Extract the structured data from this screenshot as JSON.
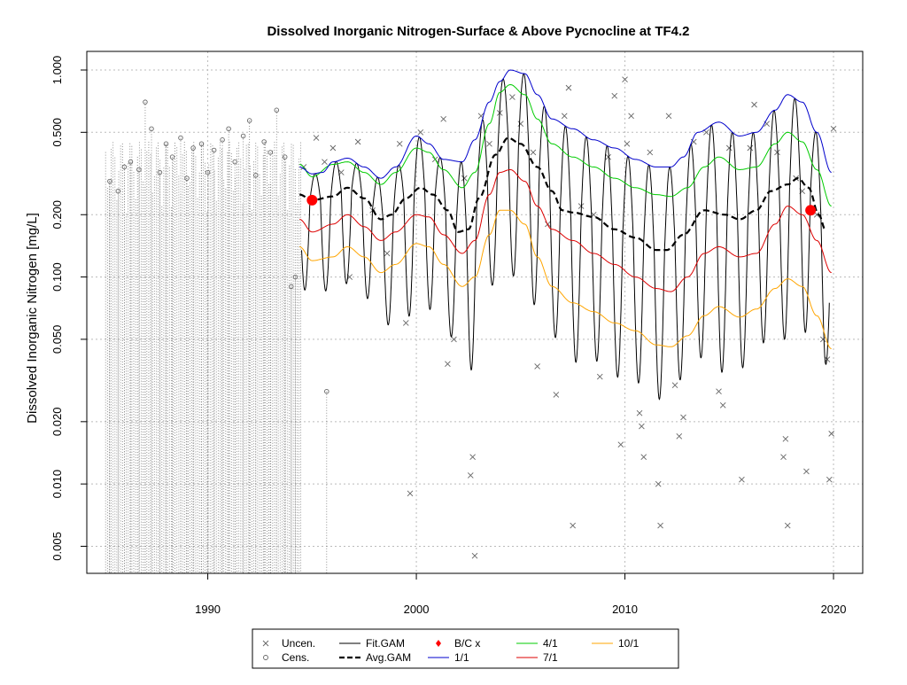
{
  "chart_data": {
    "type": "line",
    "title": "Dissolved Inorganic Nitrogen-Surface & Above Pycnocline at TF4.2",
    "xlabel": "",
    "ylabel": "Dissolved Inorganic Nitrogen [mg/L]",
    "y_scale": "log",
    "xlim": [
      1984.2,
      2021.4
    ],
    "ylim": [
      0.0037,
      1.23
    ],
    "grid": true,
    "x_ticks": [
      1990,
      2000,
      2010,
      2020
    ],
    "x_tick_labels": [
      "1990",
      "2000",
      "2010",
      "2020"
    ],
    "y_ticks": [
      0.005,
      0.01,
      0.02,
      0.05,
      0.1,
      0.2,
      0.5,
      1.0
    ],
    "y_tick_labels": [
      "0.005",
      "0.010",
      "0.020",
      "0.050",
      "0.100",
      "0.200",
      "0.500",
      "1.000"
    ],
    "colors": {
      "fit": "#000000",
      "avg": "#000000",
      "p1_1": "#0000cc",
      "p4_1": "#00cc00",
      "p7_1": "#dd0000",
      "p10_1": "#ffa500",
      "points": "#666666",
      "bc": "#ff0000",
      "grid": "#bbbbbb"
    },
    "series": [
      {
        "name": "Avg.GAM",
        "x": [
          1994.4,
          1995.0,
          1996.0,
          1996.7,
          1997.5,
          1998.3,
          1998.8,
          1999.5,
          2000.2,
          2000.8,
          2001.5,
          2002.0,
          2002.5,
          2003.0,
          2003.8,
          2004.4,
          2005.0,
          2005.8,
          2006.5,
          2007.0,
          2007.5,
          2008.5,
          2009.5,
          2010.5,
          2011.5,
          2012.0,
          2012.8,
          2013.8,
          2014.8,
          2015.5,
          2016.3,
          2017.0,
          2017.8,
          2018.3,
          2018.8,
          2019.3,
          2019.6
        ],
        "y": [
          0.25,
          0.235,
          0.245,
          0.27,
          0.24,
          0.19,
          0.2,
          0.24,
          0.27,
          0.25,
          0.21,
          0.165,
          0.17,
          0.24,
          0.39,
          0.47,
          0.44,
          0.34,
          0.26,
          0.21,
          0.205,
          0.195,
          0.17,
          0.155,
          0.135,
          0.135,
          0.16,
          0.21,
          0.2,
          0.19,
          0.21,
          0.26,
          0.28,
          0.3,
          0.27,
          0.2,
          0.17
        ]
      },
      {
        "name": "1/1",
        "x": [
          1994.4,
          1995.0,
          1995.5,
          1996.0,
          1996.7,
          1997.5,
          1998.3,
          1999.0,
          2000.0,
          2000.6,
          2001.3,
          2002.2,
          2002.8,
          2003.5,
          2004.0,
          2004.5,
          2005.2,
          2005.8,
          2006.5,
          2007.5,
          2008.5,
          2009.5,
          2010.5,
          2011.5,
          2012.2,
          2012.8,
          2013.5,
          2014.5,
          2015.5,
          2016.3,
          2017.2,
          2017.8,
          2018.5,
          2019.2,
          2019.9
        ],
        "y": [
          0.34,
          0.315,
          0.32,
          0.36,
          0.375,
          0.34,
          0.3,
          0.34,
          0.48,
          0.44,
          0.37,
          0.36,
          0.46,
          0.7,
          0.88,
          1.0,
          0.96,
          0.76,
          0.58,
          0.52,
          0.46,
          0.42,
          0.37,
          0.34,
          0.34,
          0.38,
          0.5,
          0.56,
          0.48,
          0.5,
          0.64,
          0.76,
          0.7,
          0.5,
          0.32
        ]
      },
      {
        "name": "4/1",
        "x": [
          1994.4,
          1995.0,
          1996.0,
          1996.7,
          1997.5,
          1998.3,
          1999.0,
          2000.0,
          2000.6,
          2001.3,
          2002.2,
          2002.8,
          2003.5,
          2004.0,
          2004.5,
          2005.2,
          2005.8,
          2006.5,
          2007.5,
          2008.5,
          2009.5,
          2010.5,
          2011.5,
          2012.2,
          2013.0,
          2013.8,
          2014.5,
          2015.5,
          2016.3,
          2017.2,
          2017.8,
          2018.5,
          2019.2,
          2019.9
        ],
        "y": [
          0.35,
          0.305,
          0.35,
          0.36,
          0.32,
          0.28,
          0.32,
          0.42,
          0.4,
          0.33,
          0.27,
          0.32,
          0.55,
          0.78,
          0.85,
          0.76,
          0.58,
          0.44,
          0.38,
          0.34,
          0.3,
          0.27,
          0.25,
          0.245,
          0.27,
          0.34,
          0.38,
          0.33,
          0.34,
          0.44,
          0.5,
          0.45,
          0.33,
          0.22
        ]
      },
      {
        "name": "7/1",
        "x": [
          1994.4,
          1995.0,
          1996.0,
          1996.7,
          1997.5,
          1998.3,
          1999.0,
          2000.0,
          2000.6,
          2001.3,
          2002.2,
          2002.8,
          2003.5,
          2004.0,
          2004.5,
          2005.2,
          2005.8,
          2006.5,
          2007.5,
          2008.5,
          2009.5,
          2010.5,
          2011.5,
          2012.2,
          2013.0,
          2013.8,
          2014.5,
          2015.5,
          2016.3,
          2017.2,
          2017.8,
          2018.5,
          2019.2,
          2019.9
        ],
        "y": [
          0.19,
          0.165,
          0.18,
          0.2,
          0.175,
          0.15,
          0.165,
          0.2,
          0.195,
          0.16,
          0.13,
          0.15,
          0.25,
          0.32,
          0.33,
          0.29,
          0.22,
          0.17,
          0.15,
          0.13,
          0.115,
          0.1,
          0.088,
          0.085,
          0.1,
          0.13,
          0.14,
          0.125,
          0.13,
          0.18,
          0.22,
          0.2,
          0.15,
          0.105
        ]
      },
      {
        "name": "10/1",
        "x": [
          1994.4,
          1995.0,
          1996.0,
          1996.7,
          1997.5,
          1998.3,
          1999.0,
          2000.0,
          2000.6,
          2001.3,
          2002.2,
          2002.8,
          2003.5,
          2004.0,
          2004.5,
          2005.2,
          2005.8,
          2006.5,
          2007.5,
          2008.5,
          2009.5,
          2010.5,
          2011.5,
          2012.2,
          2013.0,
          2013.8,
          2014.5,
          2015.5,
          2016.3,
          2017.2,
          2017.8,
          2018.5,
          2019.2,
          2019.9
        ],
        "y": [
          0.14,
          0.12,
          0.125,
          0.14,
          0.125,
          0.105,
          0.115,
          0.145,
          0.14,
          0.115,
          0.09,
          0.1,
          0.16,
          0.21,
          0.21,
          0.18,
          0.125,
          0.09,
          0.075,
          0.068,
          0.06,
          0.055,
          0.047,
          0.046,
          0.052,
          0.065,
          0.072,
          0.064,
          0.07,
          0.088,
          0.098,
          0.09,
          0.065,
          0.045
        ]
      }
    ],
    "fit_gam": {
      "name": "Fit.GAM",
      "x_start": 1994.5,
      "x_end": 2019.8,
      "cycles_per_year": 1,
      "phase": 0.15,
      "amp_ratio": 0.55
    },
    "bc_points": [
      {
        "x": 1995.0,
        "y": 0.235
      },
      {
        "x": 2018.9,
        "y": 0.21
      }
    ],
    "uncensored_points": [
      {
        "x": 1994.6,
        "y": 0.34
      },
      {
        "x": 1995.2,
        "y": 0.47
      },
      {
        "x": 1995.6,
        "y": 0.36
      },
      {
        "x": 1996.0,
        "y": 0.42
      },
      {
        "x": 1996.4,
        "y": 0.32
      },
      {
        "x": 1996.8,
        "y": 0.1
      },
      {
        "x": 1997.2,
        "y": 0.45
      },
      {
        "x": 1997.9,
        "y": 0.21
      },
      {
        "x": 1998.6,
        "y": 0.13
      },
      {
        "x": 1999.2,
        "y": 0.44
      },
      {
        "x": 1999.5,
        "y": 0.06
      },
      {
        "x": 1999.7,
        "y": 0.009
      },
      {
        "x": 2000.2,
        "y": 0.5
      },
      {
        "x": 2000.9,
        "y": 0.37
      },
      {
        "x": 2001.3,
        "y": 0.58
      },
      {
        "x": 2001.5,
        "y": 0.038
      },
      {
        "x": 2001.8,
        "y": 0.05
      },
      {
        "x": 2002.3,
        "y": 0.3
      },
      {
        "x": 2002.6,
        "y": 0.011
      },
      {
        "x": 2002.7,
        "y": 0.0135
      },
      {
        "x": 2002.8,
        "y": 0.0045
      },
      {
        "x": 2003.1,
        "y": 0.6
      },
      {
        "x": 2003.5,
        "y": 0.44
      },
      {
        "x": 2004.0,
        "y": 0.62
      },
      {
        "x": 2004.6,
        "y": 0.74
      },
      {
        "x": 2005.0,
        "y": 0.55
      },
      {
        "x": 2005.6,
        "y": 0.4
      },
      {
        "x": 2005.8,
        "y": 0.037
      },
      {
        "x": 2006.3,
        "y": 0.18
      },
      {
        "x": 2006.7,
        "y": 0.027
      },
      {
        "x": 2007.1,
        "y": 0.6
      },
      {
        "x": 2007.3,
        "y": 0.82
      },
      {
        "x": 2007.5,
        "y": 0.0063
      },
      {
        "x": 2007.9,
        "y": 0.22
      },
      {
        "x": 2008.5,
        "y": 0.2
      },
      {
        "x": 2008.8,
        "y": 0.033
      },
      {
        "x": 2009.2,
        "y": 0.38
      },
      {
        "x": 2009.5,
        "y": 0.75
      },
      {
        "x": 2009.8,
        "y": 0.0155
      },
      {
        "x": 2010.1,
        "y": 0.44
      },
      {
        "x": 2010.0,
        "y": 0.9
      },
      {
        "x": 2010.3,
        "y": 0.6
      },
      {
        "x": 2010.7,
        "y": 0.022
      },
      {
        "x": 2010.8,
        "y": 0.019
      },
      {
        "x": 2010.9,
        "y": 0.0135
      },
      {
        "x": 2011.2,
        "y": 0.4
      },
      {
        "x": 2011.6,
        "y": 0.01
      },
      {
        "x": 2011.7,
        "y": 0.0063
      },
      {
        "x": 2012.1,
        "y": 0.6
      },
      {
        "x": 2012.4,
        "y": 0.03
      },
      {
        "x": 2012.6,
        "y": 0.017
      },
      {
        "x": 2012.8,
        "y": 0.021
      },
      {
        "x": 2013.3,
        "y": 0.45
      },
      {
        "x": 2013.9,
        "y": 0.5
      },
      {
        "x": 2014.5,
        "y": 0.028
      },
      {
        "x": 2014.7,
        "y": 0.024
      },
      {
        "x": 2015.0,
        "y": 0.42
      },
      {
        "x": 2015.6,
        "y": 0.0105
      },
      {
        "x": 2016.0,
        "y": 0.42
      },
      {
        "x": 2016.2,
        "y": 0.68
      },
      {
        "x": 2016.8,
        "y": 0.55
      },
      {
        "x": 2017.3,
        "y": 0.4
      },
      {
        "x": 2017.6,
        "y": 0.0135
      },
      {
        "x": 2017.7,
        "y": 0.0165
      },
      {
        "x": 2017.8,
        "y": 0.0063
      },
      {
        "x": 2018.2,
        "y": 0.3
      },
      {
        "x": 2018.5,
        "y": 0.26
      },
      {
        "x": 2018.7,
        "y": 0.0115
      },
      {
        "x": 2019.2,
        "y": 0.2
      },
      {
        "x": 2019.5,
        "y": 0.05
      },
      {
        "x": 2019.7,
        "y": 0.04
      },
      {
        "x": 2019.8,
        "y": 0.0105
      },
      {
        "x": 2019.9,
        "y": 0.0175
      },
      {
        "x": 2020.0,
        "y": 0.52
      }
    ],
    "censored_points": [
      {
        "x": 1985.3,
        "y": 0.29
      },
      {
        "x": 1985.7,
        "y": 0.26
      },
      {
        "x": 1986.0,
        "y": 0.34
      },
      {
        "x": 1986.3,
        "y": 0.36
      },
      {
        "x": 1986.7,
        "y": 0.33
      },
      {
        "x": 1987.0,
        "y": 0.7
      },
      {
        "x": 1987.3,
        "y": 0.52
      },
      {
        "x": 1987.7,
        "y": 0.32
      },
      {
        "x": 1988.0,
        "y": 0.44
      },
      {
        "x": 1988.3,
        "y": 0.38
      },
      {
        "x": 1988.7,
        "y": 0.47
      },
      {
        "x": 1989.0,
        "y": 0.3
      },
      {
        "x": 1989.3,
        "y": 0.42
      },
      {
        "x": 1989.7,
        "y": 0.44
      },
      {
        "x": 1990.0,
        "y": 0.32
      },
      {
        "x": 1990.3,
        "y": 0.41
      },
      {
        "x": 1990.7,
        "y": 0.46
      },
      {
        "x": 1991.0,
        "y": 0.52
      },
      {
        "x": 1991.3,
        "y": 0.36
      },
      {
        "x": 1991.7,
        "y": 0.48
      },
      {
        "x": 1992.0,
        "y": 0.57
      },
      {
        "x": 1992.3,
        "y": 0.31
      },
      {
        "x": 1992.7,
        "y": 0.45
      },
      {
        "x": 1993.0,
        "y": 0.4
      },
      {
        "x": 1993.3,
        "y": 0.64
      },
      {
        "x": 1993.7,
        "y": 0.38
      },
      {
        "x": 1994.0,
        "y": 0.09
      },
      {
        "x": 1994.2,
        "y": 0.1
      },
      {
        "x": 1995.7,
        "y": 0.028
      }
    ],
    "legend": {
      "position": "bottom-center",
      "entries": [
        {
          "label": "Uncen.",
          "kind": "cross"
        },
        {
          "label": "Cens.",
          "kind": "circle"
        },
        {
          "label": "Fit.GAM",
          "kind": "line"
        },
        {
          "label": "Avg.GAM",
          "kind": "dashed"
        },
        {
          "label": "B/C x",
          "kind": "diamond"
        },
        {
          "label": "1/1",
          "kind": "line-blue"
        },
        {
          "label": "4/1",
          "kind": "line-green"
        },
        {
          "label": "7/1",
          "kind": "line-red"
        },
        {
          "label": "10/1",
          "kind": "line-orange"
        }
      ]
    }
  }
}
